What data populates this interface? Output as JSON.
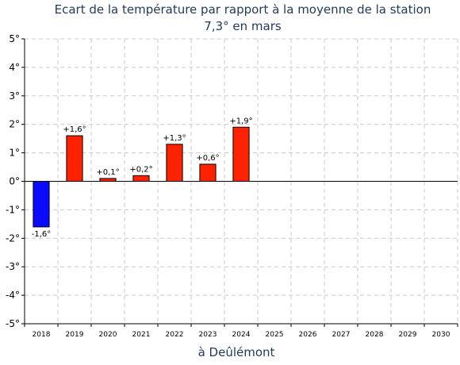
{
  "chart_data": {
    "type": "bar",
    "title": "Ecart de la température par rapport à la moyenne de la station",
    "subtitle": "7,3° en mars",
    "xlabel": "à Deûlémont",
    "categories": [
      "2018",
      "2019",
      "2020",
      "2021",
      "2022",
      "2023",
      "2024",
      "2025",
      "2026",
      "2027",
      "2028",
      "2029",
      "2030"
    ],
    "values": [
      -1.6,
      1.6,
      0.1,
      0.2,
      1.3,
      0.6,
      1.9,
      null,
      null,
      null,
      null,
      null,
      null
    ],
    "data_labels": [
      "-1,6°",
      "+1,6°",
      "+0,1°",
      "+0,2°",
      "+1,3°",
      "+0,6°",
      "+1,9°",
      "",
      "",
      "",
      "",
      "",
      ""
    ],
    "ylim": [
      -5,
      5
    ],
    "y_ticks": [
      5,
      4,
      3,
      2,
      1,
      0,
      -1,
      -2,
      -3,
      -4,
      -5
    ],
    "y_tick_labels": [
      "5°",
      "4°",
      "3°",
      "2°",
      "1°",
      "0°",
      "-1°",
      "-2°",
      "-3°",
      "-4°",
      "-5°"
    ],
    "grid": true,
    "colors": {
      "positive": "#ff2200",
      "negative": "#0a0aff",
      "grid": "#c8c8c8",
      "title": "#1f3a5a"
    }
  }
}
